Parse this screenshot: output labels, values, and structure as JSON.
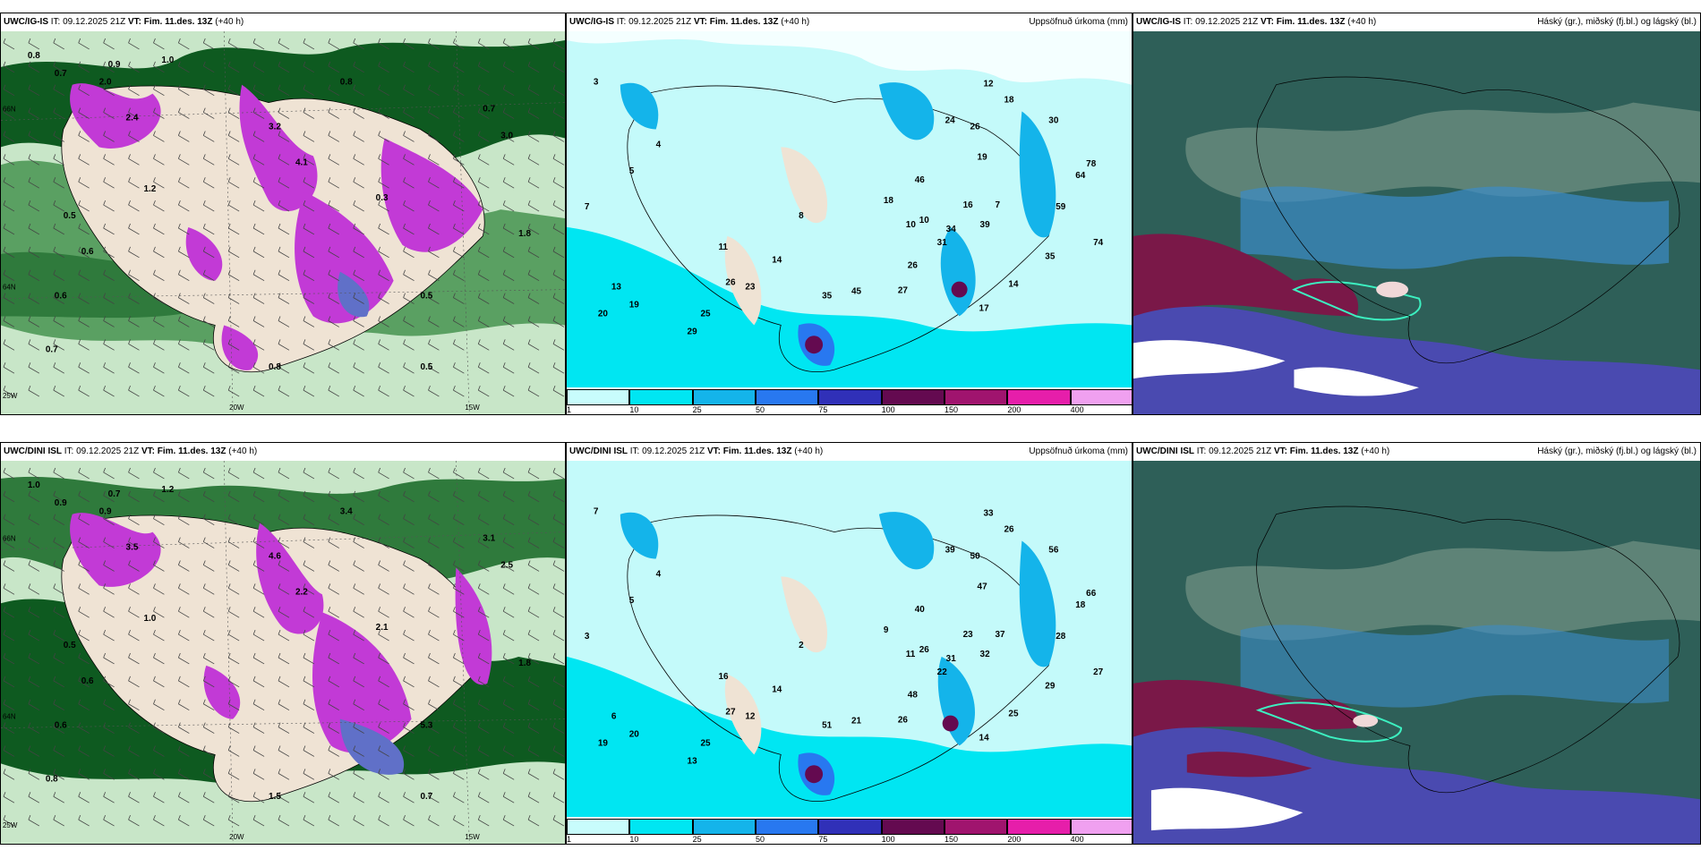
{
  "rows": [
    {
      "panels": [
        {
          "model": "UWC/IG-IS",
          "it_label": "IT:",
          "it": "09.12.2025 21Z",
          "vt_label": "VT:",
          "vt": "Fim. 11.des. 13Z",
          "lead": "(+40 h)",
          "right": ""
        },
        {
          "model": "UWC/IG-IS",
          "it_label": "IT:",
          "it": "09.12.2025 21Z",
          "vt_label": "VT:",
          "vt": "Fim. 11.des. 13Z",
          "lead": "(+40 h)",
          "right": "Uppsöfnuð úrkoma (mm)"
        },
        {
          "model": "UWC/IG-IS",
          "it_label": "IT:",
          "it": "09.12.2025 21Z",
          "vt_label": "VT:",
          "vt": "Fim. 11.des. 13Z",
          "lead": "(+40 h)",
          "right": "Háský (gr.), miðský (fj.bl.) og lágský (bl.)"
        }
      ],
      "grid_labels": {
        "lat_top": "66N",
        "lat_mid": "64N",
        "lon_left": "25W",
        "lon_a": "20W",
        "lon_b": "15W"
      },
      "snow_values": [
        "0.8",
        "0.7",
        "0.9",
        "1.0",
        "2.4",
        "3.2",
        "4.1",
        "0.5",
        "0.6",
        "1.8",
        "3.0",
        "0.3",
        "1.2",
        "2.0",
        "0.8",
        "0.5",
        "0.7",
        "0.6",
        "0.5",
        "0.7",
        "0.8"
      ],
      "precip_values": [
        "3",
        "5",
        "4",
        "7",
        "13",
        "20",
        "19",
        "25",
        "29",
        "8",
        "11",
        "14",
        "23",
        "26",
        "35",
        "45",
        "17",
        "14",
        "27",
        "26",
        "18",
        "10",
        "31",
        "34",
        "39",
        "16",
        "7",
        "10",
        "46",
        "24",
        "26",
        "19",
        "12",
        "18",
        "30",
        "78",
        "64",
        "59",
        "35",
        "74"
      ]
    },
    {
      "panels": [
        {
          "model": "UWC/DINI ISL",
          "it_label": "IT:",
          "it": "09.12.2025 21Z",
          "vt_label": "VT:",
          "vt": "Fim. 11.des. 13Z",
          "lead": "(+40 h)",
          "right": ""
        },
        {
          "model": "UWC/DINI ISL",
          "it_label": "IT:",
          "it": "09.12.2025 21Z",
          "vt_label": "VT:",
          "vt": "Fim. 11.des. 13Z",
          "lead": "(+40 h)",
          "right": "Uppsöfnuð úrkoma (mm)"
        },
        {
          "model": "UWC/DINI ISL",
          "it_label": "IT:",
          "it": "09.12.2025 21Z",
          "vt_label": "VT:",
          "vt": "Fim. 11.des. 13Z",
          "lead": "(+40 h)",
          "right": "Háský (gr.), miðský (fj.bl.) og lágský (bl.)"
        }
      ],
      "grid_labels": {
        "lat_top": "66N",
        "lat_mid": "64N",
        "lon_left": "25W",
        "lon_a": "20W",
        "lon_b": "15W"
      },
      "snow_values": [
        "1.0",
        "0.9",
        "0.7",
        "1.2",
        "3.5",
        "4.6",
        "2.2",
        "0.5",
        "0.6",
        "1.8",
        "2.5",
        "2.1",
        "1.0",
        "0.9",
        "3.4",
        "5.3",
        "0.8",
        "0.6",
        "0.7",
        "3.1",
        "1.5"
      ],
      "precip_values": [
        "7",
        "5",
        "4",
        "3",
        "6",
        "19",
        "20",
        "25",
        "13",
        "2",
        "16",
        "14",
        "12",
        "27",
        "51",
        "21",
        "14",
        "25",
        "26",
        "48",
        "9",
        "11",
        "22",
        "31",
        "32",
        "23",
        "37",
        "26",
        "40",
        "39",
        "50",
        "47",
        "33",
        "26",
        "56",
        "66",
        "18",
        "28",
        "29",
        "27"
      ]
    }
  ],
  "colorbar": {
    "ticks": [
      "1",
      "10",
      "25",
      "50",
      "75",
      "100",
      "150",
      "200",
      "400"
    ],
    "colors": [
      "#c8fcfc",
      "#00e6f2",
      "#14b4ea",
      "#2878f0",
      "#3030b8",
      "#640a50",
      "#a0146e",
      "#e61eaa",
      "#f0a0f0"
    ]
  },
  "colors": {
    "land": "#efe3d4",
    "sea_precip": "#c4fafa",
    "snow_green_dark": "#0e5a20",
    "snow_green_mid": "#5aa062",
    "snow_green_light": "#c8e6c8",
    "snow_magenta": "#c23ad6",
    "cloud_base": "#2e5f58",
    "cloud_high": "#6a8c80",
    "cloud_mid": "#3c8cc8",
    "cloud_low": "#7a1848"
  }
}
